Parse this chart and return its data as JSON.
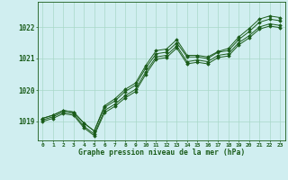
{
  "title": "Graphe pression niveau de la mer (hPa)",
  "bg_color": "#d0eef0",
  "grid_color": "#a8d8c8",
  "line_color": "#1a5c1a",
  "xlim": [
    -0.5,
    23.5
  ],
  "ylim": [
    1018.4,
    1022.8
  ],
  "xticks": [
    0,
    1,
    2,
    3,
    4,
    5,
    6,
    7,
    8,
    9,
    10,
    11,
    12,
    13,
    14,
    15,
    16,
    17,
    18,
    19,
    20,
    21,
    22,
    23
  ],
  "yticks": [
    1019,
    1020,
    1021,
    1022
  ],
  "series": [
    [
      1019.1,
      1019.2,
      1019.35,
      1019.3,
      1018.95,
      1018.7,
      1019.45,
      1019.65,
      1019.95,
      1020.15,
      1020.7,
      1021.15,
      1021.2,
      1021.5,
      1021.05,
      1021.05,
      1021.0,
      1021.2,
      1021.25,
      1021.6,
      1021.85,
      1022.15,
      1022.25,
      1022.2
    ],
    [
      1019.05,
      1019.15,
      1019.3,
      1019.25,
      1018.85,
      1018.6,
      1019.35,
      1019.55,
      1019.82,
      1020.02,
      1020.58,
      1021.05,
      1021.1,
      1021.4,
      1020.9,
      1020.95,
      1020.9,
      1021.1,
      1021.15,
      1021.5,
      1021.72,
      1022.0,
      1022.1,
      1022.05
    ],
    [
      1019.0,
      1019.1,
      1019.25,
      1019.2,
      1018.8,
      1018.55,
      1019.28,
      1019.48,
      1019.75,
      1019.95,
      1020.5,
      1020.98,
      1021.03,
      1021.33,
      1020.83,
      1020.88,
      1020.83,
      1021.03,
      1021.08,
      1021.43,
      1021.65,
      1021.93,
      1022.03,
      1021.98
    ],
    [
      1019.1,
      1019.2,
      1019.35,
      1019.3,
      1018.95,
      1018.7,
      1019.5,
      1019.72,
      1020.02,
      1020.22,
      1020.78,
      1021.25,
      1021.3,
      1021.6,
      1021.1,
      1021.1,
      1021.05,
      1021.22,
      1021.32,
      1021.68,
      1021.95,
      1022.25,
      1022.35,
      1022.3
    ]
  ]
}
